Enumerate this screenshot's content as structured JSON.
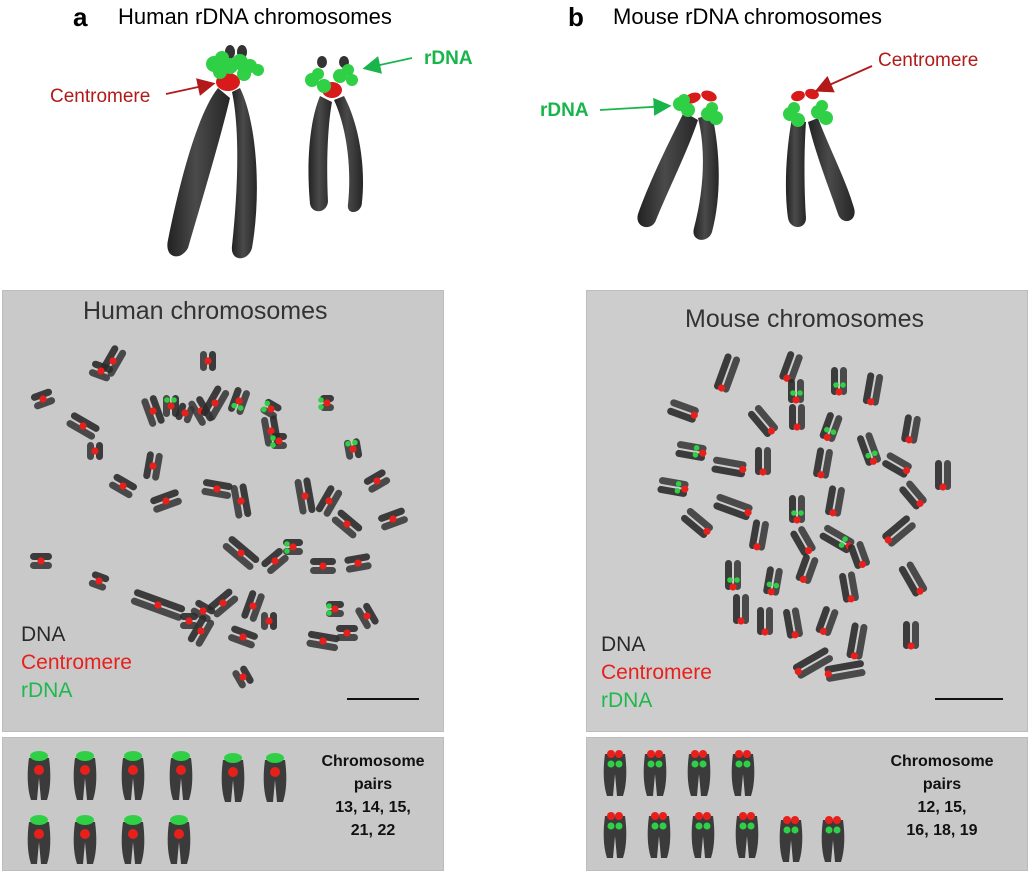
{
  "panel_a": {
    "letter": "a",
    "title": "Human rDNA chromosomes",
    "centromere_label": "Centromere",
    "rdna_label": "rDNA",
    "micrograph_title": "Human chromosomes",
    "legend": {
      "dna": "DNA",
      "centromere": "Centromere",
      "rdna": "rDNA"
    },
    "pairs_label": [
      "Chromosome",
      "pairs",
      "13, 14, 15,",
      "21, 22"
    ]
  },
  "panel_b": {
    "letter": "b",
    "title": "Mouse rDNA chromosomes",
    "centromere_label": "Centromere",
    "rdna_label": "rDNA",
    "micrograph_title": "Mouse chromosomes",
    "legend": {
      "dna": "DNA",
      "centromere": "Centromere",
      "rdna": "rDNA"
    },
    "pairs_label": [
      "Chromosome",
      "pairs",
      "12, 15,",
      "16, 18, 19"
    ]
  },
  "colors": {
    "chromosome": "#3a3a3a",
    "centromere": "#e8201c",
    "rdna": "#2fd046",
    "callout_red": "#b21a1a",
    "callout_green": "#19b54a",
    "micrograph_bg": "#c9c9c9"
  }
}
